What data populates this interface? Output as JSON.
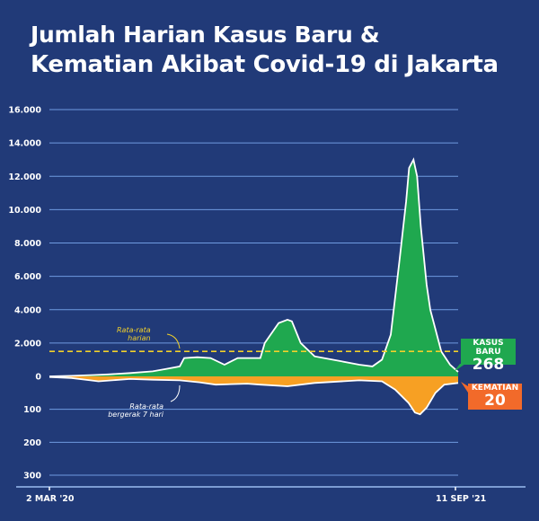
{
  "title_line1": "Jumlah Harian Kasus Baru &",
  "title_line2": "Kematian Akibat Covid-19 di Jakarta",
  "colors": {
    "background": "#213a78",
    "cases": "#1fa84f",
    "deaths": "#f7a023",
    "avg_line": "#ffffff",
    "avg_dashed": "#f2d12a",
    "grid": "#6f9be0",
    "deaths_box": "#f26a2a"
  },
  "annotations": {
    "daily_avg": [
      "Rata-rata",
      "harian"
    ],
    "moving_avg": [
      "Rata-rata",
      "bergerak 7 hari"
    ]
  },
  "callouts": {
    "cases_label": "KASUS BARU",
    "cases_value": "268",
    "deaths_label": "KEMATIAN",
    "deaths_value": "20"
  },
  "chart_data": {
    "type": "area",
    "title": "Jumlah Harian Kasus Baru & Kematian Akibat Covid-19 di Jakarta",
    "x_start_label": "2 MAR '20",
    "x_end_label": "11 SEP '21",
    "x_unit": "days since 2 Mar 2020",
    "xlim": [
      0,
      558
    ],
    "cases_axis": {
      "ticks": [
        "16.000",
        "14.000",
        "12.000",
        "10.000",
        "8.000",
        "6.000",
        "4.000",
        "2.000",
        "0"
      ],
      "ylim": [
        0,
        16000
      ]
    },
    "deaths_axis": {
      "ticks": [
        "100",
        "200",
        "300"
      ],
      "ylim": [
        0,
        300
      ]
    },
    "daily_average_cases": 1500,
    "series": [
      {
        "name": "Kasus baru (rata-rata bergerak 7 hari)",
        "points": [
          [
            0,
            0
          ],
          [
            30,
            30
          ],
          [
            60,
            80
          ],
          [
            80,
            120
          ],
          [
            110,
            200
          ],
          [
            141,
            300
          ],
          [
            160,
            450
          ],
          [
            178,
            600
          ],
          [
            184,
            1100
          ],
          [
            202,
            1150
          ],
          [
            220,
            1100
          ],
          [
            239,
            700
          ],
          [
            257,
            1100
          ],
          [
            288,
            1100
          ],
          [
            294,
            2000
          ],
          [
            313,
            3200
          ],
          [
            325,
            3400
          ],
          [
            331,
            3300
          ],
          [
            343,
            2000
          ],
          [
            362,
            1200
          ],
          [
            399,
            900
          ],
          [
            423,
            700
          ],
          [
            441,
            600
          ],
          [
            454,
            1000
          ],
          [
            466,
            2500
          ],
          [
            478,
            7000
          ],
          [
            487,
            10500
          ],
          [
            491,
            12500
          ],
          [
            497,
            13000
          ],
          [
            502,
            12000
          ],
          [
            507,
            9000
          ],
          [
            515,
            5500
          ],
          [
            520,
            4000
          ],
          [
            535,
            1500
          ],
          [
            547,
            700
          ],
          [
            558,
            268
          ]
        ]
      },
      {
        "name": "Kematian (rata-rata bergerak 7 hari)",
        "points": [
          [
            0,
            2
          ],
          [
            30,
            5
          ],
          [
            56,
            12
          ],
          [
            67,
            15
          ],
          [
            110,
            8
          ],
          [
            141,
            10
          ],
          [
            178,
            12
          ],
          [
            205,
            18
          ],
          [
            227,
            25
          ],
          [
            270,
            22
          ],
          [
            288,
            25
          ],
          [
            325,
            30
          ],
          [
            362,
            20
          ],
          [
            423,
            12
          ],
          [
            454,
            15
          ],
          [
            472,
            40
          ],
          [
            490,
            80
          ],
          [
            499,
            110
          ],
          [
            506,
            115
          ],
          [
            515,
            95
          ],
          [
            527,
            50
          ],
          [
            539,
            25
          ],
          [
            558,
            20
          ]
        ]
      }
    ]
  }
}
